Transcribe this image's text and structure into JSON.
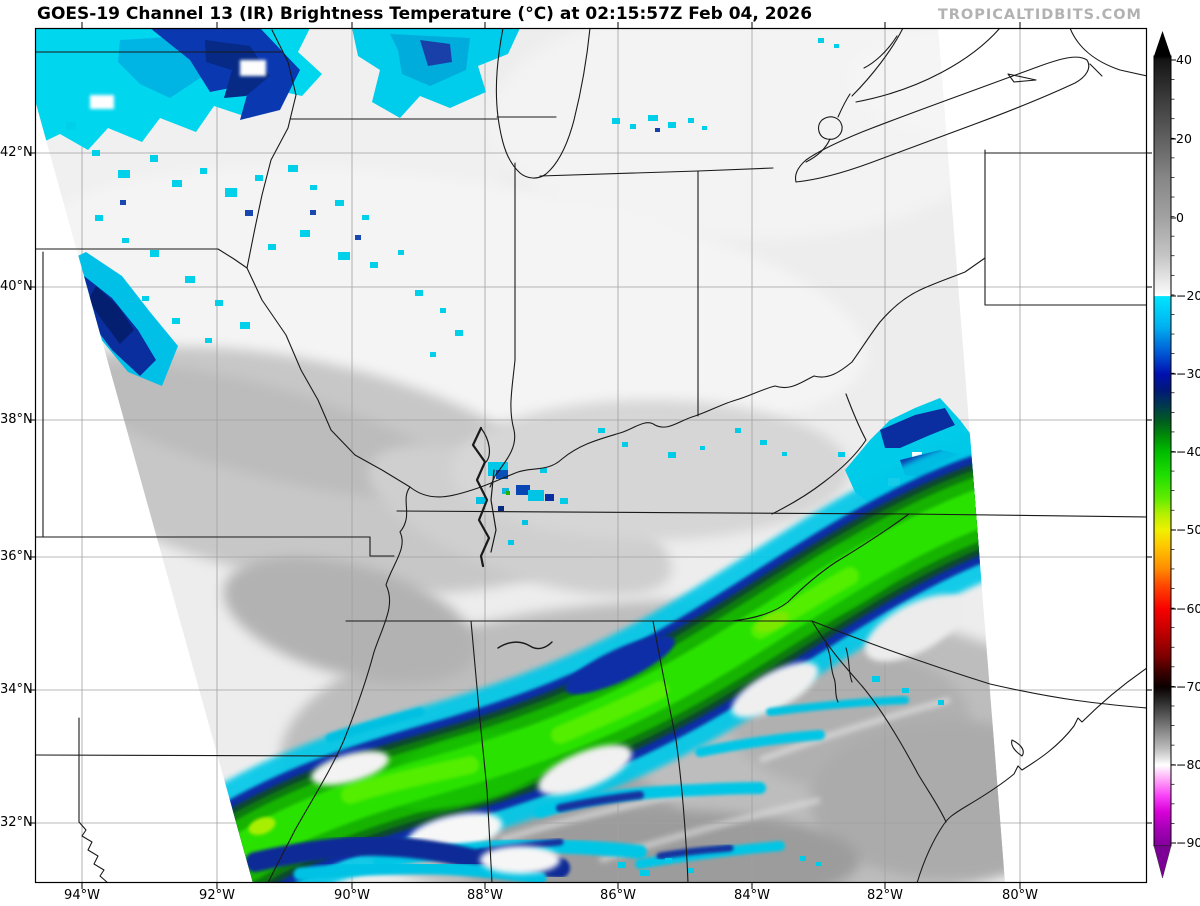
{
  "header": {
    "title": "GOES-19 Channel 13 (IR) Brightness Temperature (°C) at 02:15:57Z Feb 04, 2026",
    "watermark": "TROPICALTIDBITS.COM"
  },
  "axes": {
    "lat_ticks": [
      "42°N",
      "40°N",
      "38°N",
      "36°N",
      "34°N",
      "32°N"
    ],
    "lon_ticks": [
      "94°W",
      "92°W",
      "90°W",
      "88°W",
      "86°W",
      "84°W",
      "82°W",
      "80°W"
    ]
  },
  "colorbar": {
    "tick_labels": [
      "40",
      "20",
      "0",
      "−20",
      "−30",
      "−40",
      "−50",
      "−60",
      "−70",
      "−80",
      "−90"
    ],
    "key_colors": {
      "warm_gray_top": "#141414",
      "neutral_white": "#ffffff",
      "cold_cyan": "#00e6ff",
      "cold_navy": "#0a2ea6",
      "cold_green": "#00c400",
      "cold_yellow": "#f0f000",
      "cold_red": "#f80000",
      "cold_magenta": "#e000e0",
      "cold_purple": "#7c0096"
    }
  }
}
